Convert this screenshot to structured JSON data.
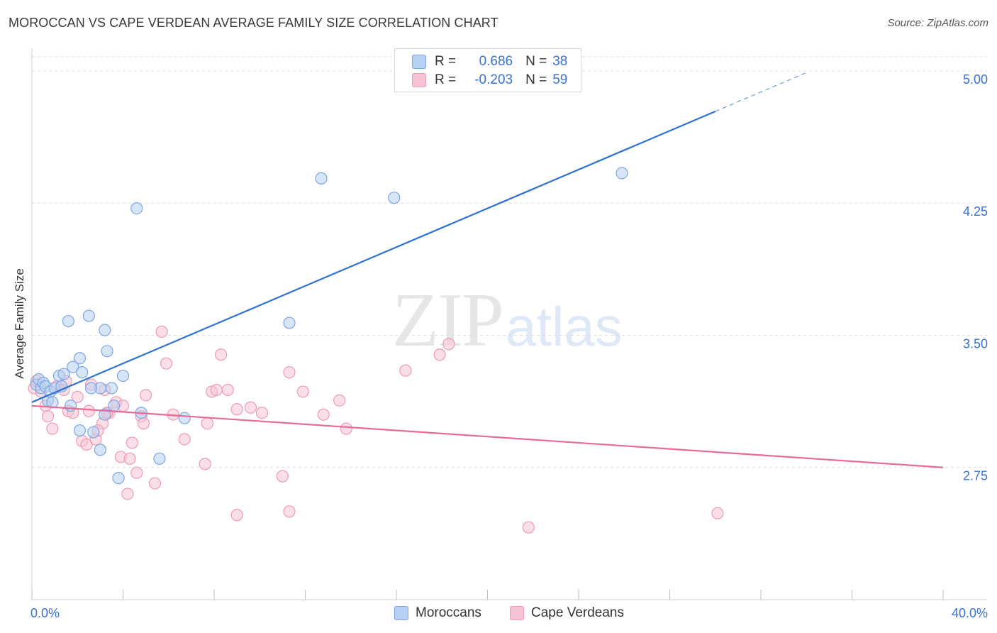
{
  "title": "MOROCCAN VS CAPE VERDEAN AVERAGE FAMILY SIZE CORRELATION CHART",
  "source": "Source: ZipAtlas.com",
  "watermark": {
    "zip": "ZIP",
    "atlas": "atlas"
  },
  "colors": {
    "blue": "#3a72d0",
    "blue_fill": "#b7d0f3",
    "blue_stroke": "#7ea6e0",
    "blue_line": "#2f72d3",
    "pink": "#e86a96",
    "pink_fill": "#f6c4d4",
    "pink_stroke": "#ee9ab5",
    "grid": "#dcdcdc",
    "axis_label": "#3a72d0"
  },
  "legend": {
    "rows": [
      {
        "r_label": "R =",
        "r_value": "0.686",
        "n_label": "N =",
        "n_value": "38"
      },
      {
        "r_label": "R =",
        "r_value": "-0.203",
        "n_label": "N =",
        "n_value": "59"
      }
    ]
  },
  "bottom_legend": {
    "items": [
      "Moroccans",
      "Cape Verdeans"
    ]
  },
  "chart_data": {
    "type": "scatter",
    "title": "MOROCCAN VS CAPE VERDEAN AVERAGE FAMILY SIZE CORRELATION CHART",
    "xlabel": "",
    "ylabel": "Average Family Size",
    "xlim": [
      0,
      40
    ],
    "ylim": [
      2.0,
      5.08
    ],
    "x_tick_labels": [
      "0.0%",
      "40.0%"
    ],
    "y_ticks": [
      2.75,
      3.5,
      4.25,
      5.0
    ],
    "y_tick_labels": [
      "2.75",
      "3.50",
      "4.25",
      "5.00"
    ],
    "grid": true,
    "series": [
      {
        "name": "Moroccans",
        "r": 0.686,
        "n": 38,
        "trend": {
          "x0": 0.0,
          "y0": 3.12,
          "x1": 30.0,
          "y1": 4.77,
          "dash_to_x": 34.0
        },
        "points": [
          [
            0.2,
            3.22
          ],
          [
            0.3,
            3.25
          ],
          [
            0.4,
            3.2
          ],
          [
            0.5,
            3.23
          ],
          [
            0.6,
            3.21
          ],
          [
            0.7,
            3.13
          ],
          [
            0.8,
            3.18
          ],
          [
            1.0,
            3.2
          ],
          [
            1.2,
            3.27
          ],
          [
            1.4,
            3.28
          ],
          [
            1.6,
            3.58
          ],
          [
            1.8,
            3.32
          ],
          [
            2.1,
            3.37
          ],
          [
            2.2,
            3.29
          ],
          [
            2.5,
            3.61
          ],
          [
            3.2,
            3.53
          ],
          [
            3.3,
            3.41
          ],
          [
            3.5,
            3.2
          ],
          [
            3.0,
            3.2
          ],
          [
            4.0,
            3.27
          ],
          [
            2.6,
            3.2
          ],
          [
            1.7,
            3.1
          ],
          [
            2.1,
            2.96
          ],
          [
            2.7,
            2.95
          ],
          [
            3.0,
            2.85
          ],
          [
            3.2,
            3.05
          ],
          [
            3.6,
            3.1
          ],
          [
            3.8,
            2.69
          ],
          [
            4.6,
            4.22
          ],
          [
            4.8,
            3.06
          ],
          [
            5.6,
            2.8
          ],
          [
            6.7,
            3.03
          ],
          [
            11.3,
            3.57
          ],
          [
            12.7,
            4.39
          ],
          [
            15.9,
            4.28
          ],
          [
            25.9,
            4.42
          ],
          [
            0.9,
            3.12
          ],
          [
            1.3,
            3.21
          ]
        ]
      },
      {
        "name": "Cape Verdeans",
        "r": -0.203,
        "n": 59,
        "trend": {
          "x0": 0.0,
          "y0": 3.1,
          "x1": 40.0,
          "y1": 2.75
        },
        "points": [
          [
            0.1,
            3.2
          ],
          [
            0.2,
            3.24
          ],
          [
            0.4,
            3.18
          ],
          [
            0.6,
            3.1
          ],
          [
            0.7,
            3.04
          ],
          [
            0.9,
            2.97
          ],
          [
            1.1,
            3.21
          ],
          [
            1.4,
            3.19
          ],
          [
            1.5,
            3.24
          ],
          [
            1.6,
            3.07
          ],
          [
            1.8,
            3.06
          ],
          [
            2.0,
            3.15
          ],
          [
            2.2,
            2.9
          ],
          [
            2.4,
            2.88
          ],
          [
            2.6,
            3.22
          ],
          [
            2.5,
            3.07
          ],
          [
            2.8,
            2.91
          ],
          [
            3.1,
            3.0
          ],
          [
            3.2,
            3.19
          ],
          [
            3.4,
            3.06
          ],
          [
            3.7,
            3.12
          ],
          [
            3.9,
            2.81
          ],
          [
            4.0,
            3.1
          ],
          [
            4.2,
            2.6
          ],
          [
            4.3,
            2.8
          ],
          [
            4.4,
            2.89
          ],
          [
            4.6,
            2.72
          ],
          [
            4.8,
            3.04
          ],
          [
            4.9,
            3.0
          ],
          [
            5.0,
            3.16
          ],
          [
            5.4,
            2.66
          ],
          [
            5.7,
            3.52
          ],
          [
            5.9,
            3.34
          ],
          [
            6.2,
            3.05
          ],
          [
            6.7,
            2.91
          ],
          [
            7.6,
            2.77
          ],
          [
            7.7,
            3.0
          ],
          [
            7.9,
            3.18
          ],
          [
            8.1,
            3.19
          ],
          [
            8.3,
            3.39
          ],
          [
            8.6,
            3.19
          ],
          [
            9.0,
            2.48
          ],
          [
            9.0,
            3.08
          ],
          [
            9.6,
            3.09
          ],
          [
            10.1,
            3.06
          ],
          [
            11.0,
            2.7
          ],
          [
            11.3,
            3.29
          ],
          [
            11.3,
            2.5
          ],
          [
            11.9,
            3.18
          ],
          [
            12.8,
            3.05
          ],
          [
            13.5,
            3.13
          ],
          [
            13.8,
            2.97
          ],
          [
            16.4,
            3.3
          ],
          [
            17.9,
            3.39
          ],
          [
            18.3,
            3.45
          ],
          [
            21.8,
            2.41
          ],
          [
            30.1,
            2.49
          ],
          [
            2.9,
            2.96
          ],
          [
            3.3,
            3.06
          ]
        ]
      }
    ]
  }
}
